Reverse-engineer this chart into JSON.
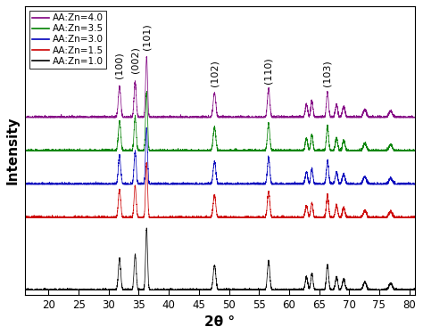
{
  "title": "",
  "xlabel": "2θ °",
  "ylabel": "Intensity",
  "xlim": [
    16,
    81
  ],
  "xticks": [
    20,
    25,
    30,
    35,
    40,
    45,
    50,
    55,
    60,
    65,
    70,
    75,
    80
  ],
  "series_labels": [
    "AA:Zn=4.0",
    "AA:Zn=3.5",
    "AA:Zn=3.0",
    "AA:Zn=1.5",
    "AA:Zn=1.0"
  ],
  "colors": [
    "#800080",
    "#008000",
    "#0000BB",
    "#CC0000",
    "#000000"
  ],
  "offsets": [
    1.55,
    1.25,
    0.95,
    0.65,
    0.0
  ],
  "background_color": "#ffffff",
  "peak_annotations": [
    {
      "text": "(100)",
      "x": 31.8
    },
    {
      "text": "(002)",
      "x": 34.4
    },
    {
      "text": "(101)",
      "x": 36.3
    },
    {
      "text": "(102)",
      "x": 47.6
    },
    {
      "text": "(110)",
      "x": 56.6
    },
    {
      "text": "(103)",
      "x": 66.4
    }
  ]
}
